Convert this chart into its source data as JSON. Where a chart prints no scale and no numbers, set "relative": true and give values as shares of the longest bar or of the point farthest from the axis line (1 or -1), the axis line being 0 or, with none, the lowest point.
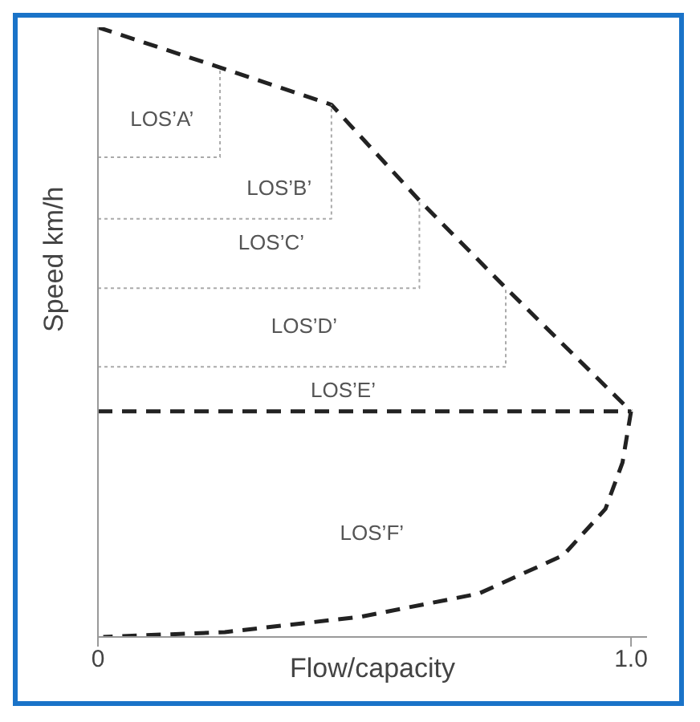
{
  "chart_data": {
    "type": "line",
    "xlabel": "Flow/capacity",
    "ylabel": "Speed km/h",
    "relative": true,
    "xlim": [
      0,
      1.03
    ],
    "xticks": [
      0,
      {
        "value": 1,
        "label": "1.0"
      }
    ],
    "tick_labels": "x",
    "grid": false,
    "marker": "none",
    "series": [
      {
        "color": "#222222",
        "line_style": "dashed",
        "x": [
          0,
          0.229,
          0.438,
          0.603,
          0.768,
          1.0
        ],
        "values": [
          1,
          0.934,
          0.873,
          0.716,
          0.57,
          0.37
        ]
      },
      {
        "color": "#222222",
        "line_style": "dashed",
        "x": [
          0,
          1.0
        ],
        "values": [
          0.37,
          0.37
        ]
      },
      {
        "color": "#222222",
        "line_style": "dashed",
        "x": [
          1.0,
          0.984,
          0.952,
          0.873,
          0.714,
          0.492,
          0.238,
          0.01
        ],
        "values": [
          0.37,
          0.286,
          0.21,
          0.134,
          0.071,
          0.033,
          0.008,
          0
        ]
      },
      {
        "color": "#aaaaaa",
        "line_style": "dotted",
        "x": [
          0,
          0.229,
          0.229
        ],
        "values": [
          0.787,
          0.787,
          0.934
        ]
      },
      {
        "color": "#aaaaaa",
        "line_style": "dotted",
        "x": [
          0,
          0.438,
          0.438
        ],
        "values": [
          0.686,
          0.686,
          0.873
        ]
      },
      {
        "color": "#aaaaaa",
        "line_style": "dotted",
        "x": [
          0,
          0.603,
          0.603
        ],
        "values": [
          0.572,
          0.572,
          0.716
        ]
      },
      {
        "color": "#aaaaaa",
        "line_style": "dotted",
        "x": [
          0,
          0.765,
          0.765
        ],
        "values": [
          0.443,
          0.443,
          0.57
        ]
      }
    ],
    "annotations": [
      "LOS’A’",
      "LOS’B’",
      "LOS’C’",
      "LOS’D’",
      "LOS’E’",
      "LOS’F’"
    ]
  }
}
